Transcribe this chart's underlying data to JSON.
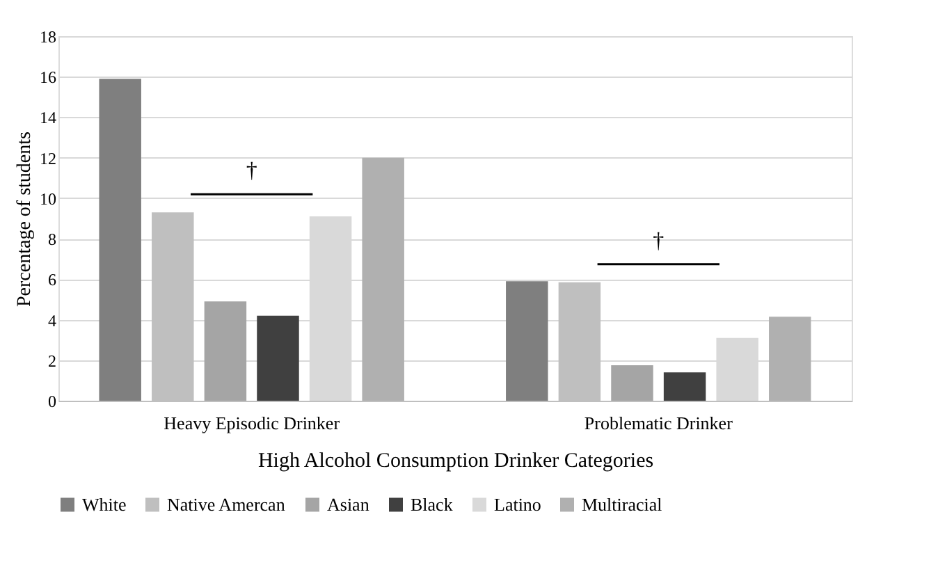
{
  "chart_data": {
    "type": "bar",
    "xlabel": "High Alcohol Consumption Drinker Categories",
    "ylabel": "Percentage of students",
    "categories": [
      "Heavy Episodic Drinker",
      "Problematic Drinker"
    ],
    "series": [
      {
        "name": "White",
        "color": "#7f7f7f",
        "values": [
          15.9,
          5.9
        ]
      },
      {
        "name": "Native Amercan",
        "color": "#bfbfbf",
        "values": [
          9.3,
          5.85
        ]
      },
      {
        "name": "Asian",
        "color": "#a5a5a5",
        "values": [
          4.9,
          1.75
        ]
      },
      {
        "name": "Black",
        "color": "#404040",
        "values": [
          4.2,
          1.4
        ]
      },
      {
        "name": "Latino",
        "color": "#d9d9d9",
        "values": [
          9.1,
          3.1
        ]
      },
      {
        "name": "Multiracial",
        "color": "#b0b0b0",
        "values": [
          12.0,
          4.15
        ]
      }
    ],
    "ylim": [
      0,
      18
    ],
    "yticks": [
      0,
      2,
      4,
      6,
      8,
      10,
      12,
      14,
      16,
      18
    ],
    "grid": "y",
    "legend": "bottom",
    "annotations": [
      "†",
      "†"
    ]
  }
}
